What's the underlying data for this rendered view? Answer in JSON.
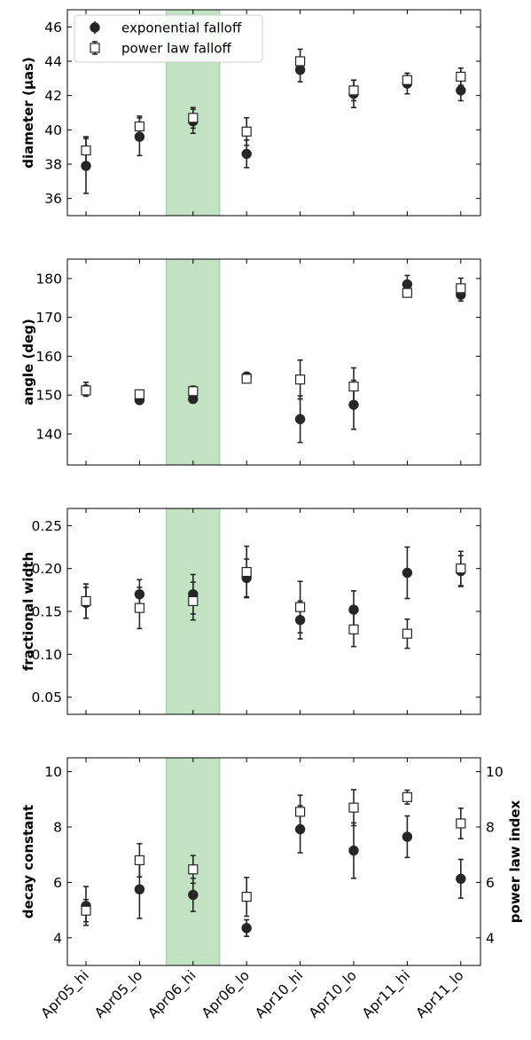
{
  "chart_data": [
    {
      "type": "scatter",
      "ylabel": "diameter (μas)",
      "ylim": [
        35,
        47
      ],
      "yticks": [
        36,
        38,
        40,
        42,
        44,
        46
      ],
      "yticks_right": [],
      "ylabel_right": "",
      "legend": true,
      "legend_placement": "top-left",
      "series": [
        {
          "name": "exponential falloff",
          "marker": "filled-circle",
          "values": [
            37.9,
            39.6,
            40.5,
            38.6,
            43.5,
            42.1,
            42.7,
            42.3
          ],
          "errors": [
            1.6,
            1.1,
            0.7,
            0.8,
            0.7,
            0.8,
            0.6,
            0.6
          ]
        },
        {
          "name": "power law falloff",
          "marker": "open-square",
          "values": [
            38.8,
            40.2,
            40.7,
            39.9,
            44.0,
            42.3,
            42.9,
            43.1
          ],
          "errors": [
            0.8,
            0.6,
            0.6,
            0.8,
            0.7,
            0.6,
            0.4,
            0.5
          ]
        }
      ]
    },
    {
      "type": "scatter",
      "ylabel": "angle (deg)",
      "ylim": [
        132,
        185
      ],
      "yticks": [
        140,
        150,
        160,
        170,
        180
      ],
      "yticks_right": [],
      "ylabel_right": "",
      "legend": false,
      "series": [
        {
          "name": "exponential falloff",
          "marker": "filled-circle",
          "values": [
            151.5,
            148.7,
            149.0,
            154.8,
            143.8,
            147.5,
            178.5,
            175.8
          ],
          "errors": [
            1.8,
            1.0,
            1.0,
            0.8,
            6.0,
            6.3,
            2.3,
            1.6
          ]
        },
        {
          "name": "power law falloff",
          "marker": "open-square",
          "values": [
            151.2,
            150.2,
            151.0,
            154.2,
            154.0,
            152.2,
            176.3,
            177.5
          ],
          "errors": [
            1.2,
            1.0,
            1.3,
            0.8,
            5.0,
            4.8,
            1.0,
            2.6
          ]
        }
      ]
    },
    {
      "type": "scatter",
      "ylabel": "fractional width",
      "ylim": [
        0.03,
        0.27
      ],
      "yticks": [
        0.05,
        0.1,
        0.15,
        0.2,
        0.25
      ],
      "yticks_right": [],
      "ylabel_right": "",
      "legend": false,
      "series": [
        {
          "name": "exponential falloff",
          "marker": "filled-circle",
          "values": [
            0.16,
            0.17,
            0.17,
            0.189,
            0.14,
            0.152,
            0.195,
            0.197
          ],
          "errors": [
            0.018,
            0.017,
            0.023,
            0.022,
            0.022,
            0.022,
            0.03,
            0.018
          ]
        },
        {
          "name": "power law falloff",
          "marker": "open-square",
          "values": [
            0.162,
            0.154,
            0.162,
            0.196,
            0.155,
            0.129,
            0.124,
            0.2
          ],
          "errors": [
            0.02,
            0.024,
            0.022,
            0.03,
            0.03,
            0.02,
            0.017,
            0.02
          ]
        }
      ]
    },
    {
      "type": "scatter",
      "ylabel": "decay constant",
      "ylim": [
        3.0,
        10.5
      ],
      "yticks": [
        4,
        6,
        8,
        10
      ],
      "yticks_right": [
        4,
        6,
        8,
        10
      ],
      "ylabel_right": "power law index",
      "legend": false,
      "series": [
        {
          "name": "exponential falloff",
          "marker": "filled-circle",
          "values": [
            5.15,
            5.75,
            5.55,
            4.35,
            7.92,
            7.15,
            7.65,
            6.13
          ],
          "errors": [
            0.7,
            1.05,
            0.6,
            0.3,
            0.85,
            1.0,
            0.75,
            0.7
          ]
        },
        {
          "name": "power law falloff",
          "marker": "open-square",
          "values": [
            4.98,
            6.8,
            6.47,
            5.48,
            8.55,
            8.7,
            9.08,
            8.13
          ],
          "errors": [
            0.4,
            0.6,
            0.5,
            0.7,
            0.6,
            0.65,
            0.25,
            0.55
          ]
        }
      ]
    }
  ],
  "categories": [
    "Apr05_hi",
    "Apr05_lo",
    "Apr06_hi",
    "Apr06_lo",
    "Apr10_hi",
    "Apr10_lo",
    "Apr11_hi",
    "Apr11_lo"
  ],
  "highlight_band": {
    "from_index": 1.5,
    "to_index": 2.5,
    "color": "#4caf50"
  },
  "colors": {
    "marker": "#262626",
    "band": "#4caf50"
  }
}
